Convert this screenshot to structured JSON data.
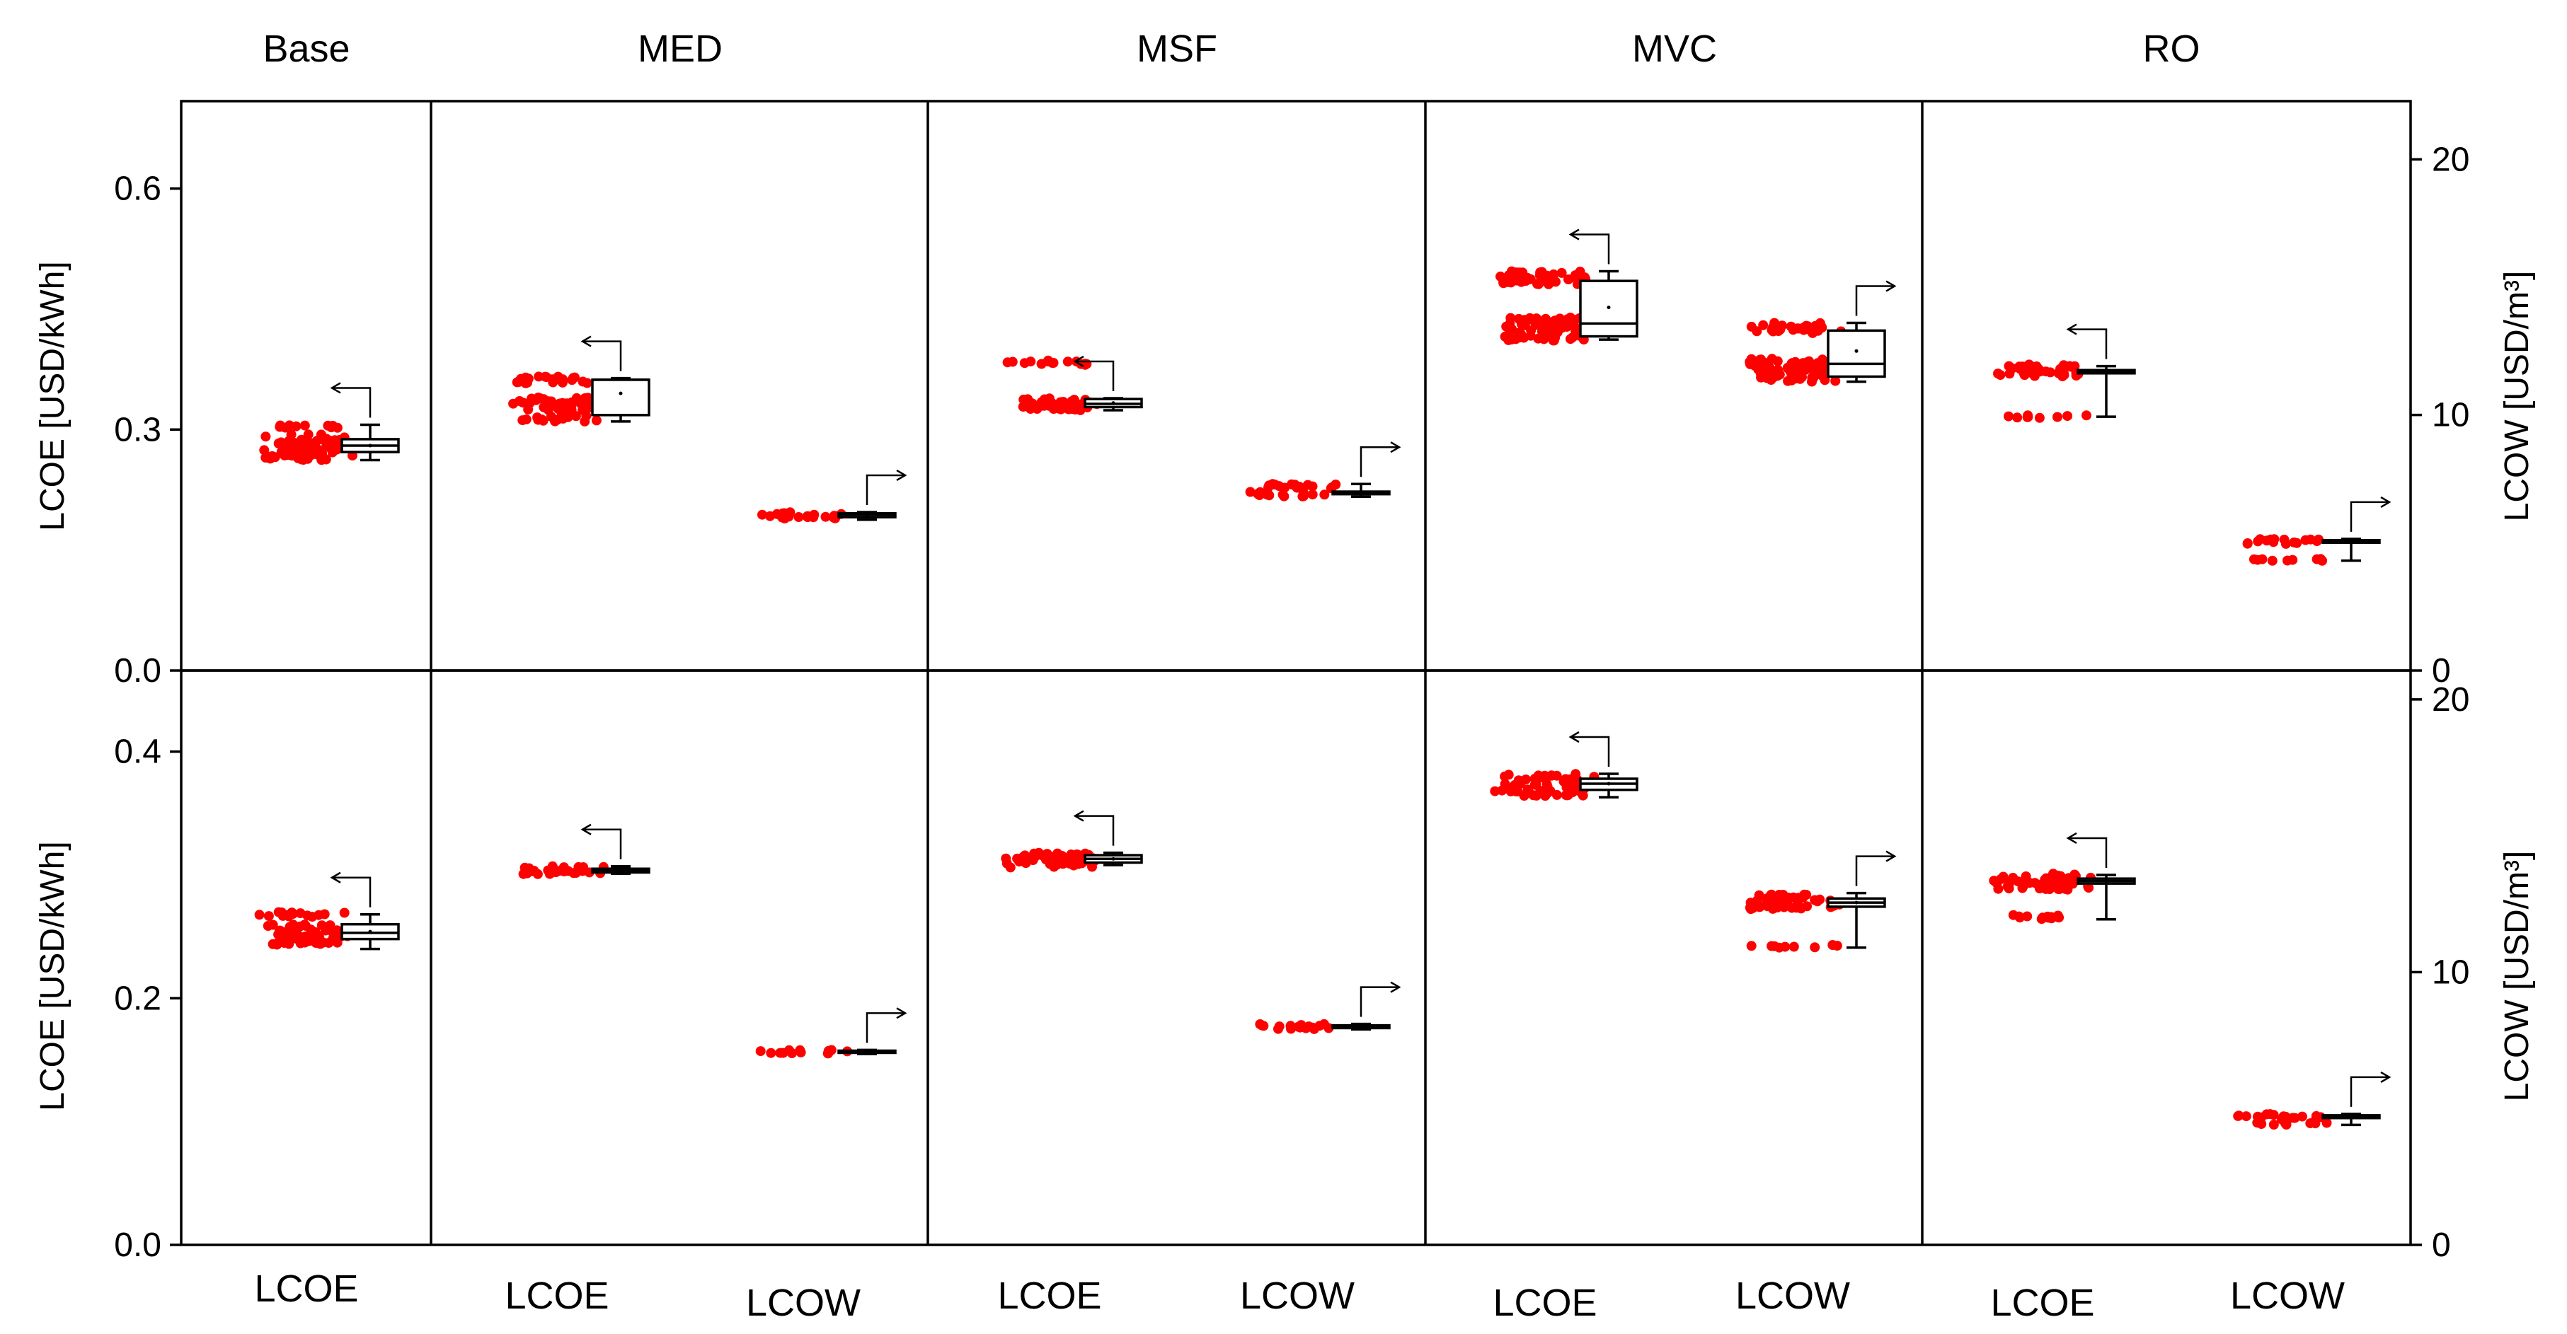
{
  "chart_data": {
    "type": "box-swarm",
    "colors": {
      "points": "#ff0000",
      "box": "#000000",
      "frame": "#000000"
    },
    "column_titles": [
      "Base",
      "MED",
      "MSF",
      "MVC",
      "RO"
    ],
    "categories": {
      "Base": [
        "LCOE"
      ],
      "MED": [
        "LCOE",
        "LCOW"
      ],
      "MSF": [
        "LCOE",
        "LCOW"
      ],
      "MVC": [
        "LCOE",
        "LCOW"
      ],
      "RO": [
        "LCOE",
        "LCOW"
      ]
    },
    "left_axis_label": "LCOE [USD/kWh]",
    "right_axis_label": "LCOW [USD/m³]",
    "rows": [
      {
        "left_ylim": [
          0,
          0.7
        ],
        "left_ticks": [
          "0.0",
          "0.3",
          "0.6"
        ],
        "left_tick_values": [
          0,
          0.3,
          0.6
        ],
        "right_ylim": [
          0,
          22
        ],
        "right_ticks": [
          "0",
          "10",
          "20"
        ],
        "right_tick_values": [
          0,
          10,
          20
        ],
        "series": [
          {
            "column": "Base",
            "metric": "LCOE",
            "axis": "left",
            "min": 0.262,
            "q1": 0.272,
            "median": 0.28,
            "q3": 0.288,
            "max": 0.306,
            "mean": 0.28,
            "clusters": [
              [
                0.262,
                0.294
              ],
              [
                0.302,
                0.306
              ]
            ]
          },
          {
            "column": "MED",
            "metric": "LCOE",
            "axis": "left",
            "min": 0.31,
            "q1": 0.318,
            "median": 0.362,
            "q3": 0.362,
            "max": 0.364,
            "mean": 0.345,
            "clusters": [
              [
                0.31,
                0.317
              ],
              [
                0.324,
                0.34
              ],
              [
                0.357,
                0.366
              ]
            ]
          },
          {
            "column": "MED",
            "metric": "LCOW",
            "axis": "right",
            "min": 5.9,
            "q1": 6.0,
            "median": 6.1,
            "q3": 6.15,
            "max": 6.2,
            "mean": 6.1,
            "clusters": [
              [
                5.95,
                6.2
              ]
            ]
          },
          {
            "column": "MSF",
            "metric": "LCOE",
            "axis": "left",
            "min": 0.324,
            "q1": 0.328,
            "median": 0.332,
            "q3": 0.338,
            "max": 0.339,
            "mean": 0.333,
            "clusters": [
              [
                0.324,
                0.339
              ],
              [
                0.38,
                0.386
              ]
            ]
          },
          {
            "column": "MSF",
            "metric": "LCOW",
            "axis": "right",
            "min": 6.8,
            "q1": 6.9,
            "median": 6.95,
            "q3": 7.0,
            "max": 7.3,
            "mean": 6.95,
            "clusters": [
              [
                6.8,
                7.0
              ],
              [
                7.1,
                7.3
              ]
            ]
          },
          {
            "column": "MVC",
            "metric": "LCOE",
            "axis": "left",
            "min": 0.412,
            "q1": 0.416,
            "median": 0.432,
            "q3": 0.485,
            "max": 0.497,
            "mean": 0.452,
            "clusters": [
              [
                0.41,
                0.44
              ],
              [
                0.48,
                0.497
              ]
            ]
          },
          {
            "column": "MVC",
            "metric": "LCOW",
            "axis": "right",
            "min": 11.3,
            "q1": 11.5,
            "median": 12.0,
            "q3": 13.3,
            "max": 13.6,
            "mean": 12.5,
            "clusters": [
              [
                11.3,
                12.2
              ],
              [
                13.2,
                13.6
              ]
            ]
          },
          {
            "column": "RO",
            "metric": "LCOE",
            "axis": "left",
            "min": 0.316,
            "q1": 0.37,
            "median": 0.372,
            "q3": 0.374,
            "max": 0.379,
            "mean": 0.372,
            "clusters": [
              [
                0.366,
                0.381
              ],
              [
                0.316,
                0.318
              ]
            ]
          },
          {
            "column": "RO",
            "metric": "LCOW",
            "axis": "right",
            "min": 4.3,
            "q1": 5.0,
            "median": 5.05,
            "q3": 5.1,
            "max": 5.15,
            "mean": 5.05,
            "clusters": [
              [
                4.95,
                5.15
              ],
              [
                4.3,
                4.4
              ]
            ]
          }
        ]
      },
      {
        "left_ylim": [
          0,
          0.46
        ],
        "left_ticks": [
          "0.0",
          "0.2",
          "0.4"
        ],
        "left_tick_values": [
          0,
          0.2,
          0.4
        ],
        "right_ylim": [
          0,
          20.8
        ],
        "right_ticks": [
          "0",
          "10",
          "20"
        ],
        "right_tick_values": [
          0,
          10,
          20
        ],
        "series": [
          {
            "column": "Base",
            "metric": "LCOE",
            "axis": "left",
            "min": 0.24,
            "q1": 0.248,
            "median": 0.253,
            "q3": 0.26,
            "max": 0.268,
            "mean": 0.254,
            "clusters": [
              [
                0.243,
                0.26
              ],
              [
                0.266,
                0.27
              ]
            ]
          },
          {
            "column": "MED",
            "metric": "LCOE",
            "axis": "left",
            "min": 0.301,
            "q1": 0.302,
            "median": 0.303,
            "q3": 0.305,
            "max": 0.307,
            "mean": 0.304,
            "clusters": [
              [
                0.3,
                0.307
              ]
            ]
          },
          {
            "column": "MED",
            "metric": "LCOW",
            "axis": "right",
            "min": 7.0,
            "q1": 7.05,
            "median": 7.1,
            "q3": 7.12,
            "max": 7.15,
            "mean": 7.1,
            "clusters": [
              [
                7.0,
                7.15
              ]
            ]
          },
          {
            "column": "MSF",
            "metric": "LCOE",
            "axis": "left",
            "min": 0.308,
            "q1": 0.31,
            "median": 0.313,
            "q3": 0.316,
            "max": 0.318,
            "mean": 0.313,
            "clusters": [
              [
                0.306,
                0.318
              ]
            ]
          },
          {
            "column": "MSF",
            "metric": "LCOW",
            "axis": "right",
            "min": 7.9,
            "q1": 7.95,
            "median": 8.0,
            "q3": 8.05,
            "max": 8.1,
            "mean": 8.0,
            "clusters": [
              [
                7.9,
                8.1
              ]
            ]
          },
          {
            "column": "MVC",
            "metric": "LCOE",
            "axis": "left",
            "min": 0.363,
            "q1": 0.369,
            "median": 0.374,
            "q3": 0.378,
            "max": 0.382,
            "mean": 0.374,
            "clusters": [
              [
                0.364,
                0.382
              ]
            ]
          },
          {
            "column": "MVC",
            "metric": "LCOW",
            "axis": "right",
            "min": 10.9,
            "q1": 12.4,
            "median": 12.55,
            "q3": 12.7,
            "max": 12.9,
            "mean": 12.55,
            "clusters": [
              [
                12.3,
                12.9
              ],
              [
                10.9,
                11.0
              ]
            ]
          },
          {
            "column": "RO",
            "metric": "LCOE",
            "axis": "left",
            "min": 0.264,
            "q1": 0.293,
            "median": 0.295,
            "q3": 0.297,
            "max": 0.3,
            "mean": 0.295,
            "clusters": [
              [
                0.288,
                0.301
              ],
              [
                0.264,
                0.268
              ]
            ]
          },
          {
            "column": "RO",
            "metric": "LCOW",
            "axis": "right",
            "min": 4.4,
            "q1": 4.65,
            "median": 4.7,
            "q3": 4.75,
            "max": 4.8,
            "mean": 4.7,
            "clusters": [
              [
                4.6,
                4.8
              ],
              [
                4.4,
                4.5
              ]
            ]
          }
        ]
      }
    ]
  }
}
